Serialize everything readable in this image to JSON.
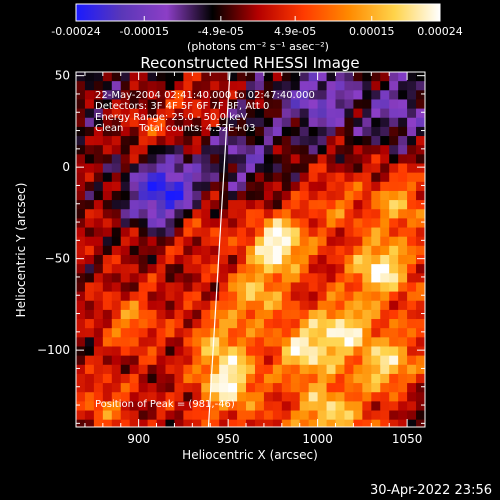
{
  "colorbar": {
    "tick_labels": [
      "-0.00024",
      "-0.00015",
      "-4.9e-05",
      "4.9e-05",
      "0.00015",
      "0.00024"
    ],
    "tick_values": [
      -0.00024,
      -0.00015,
      -4.9e-05,
      4.9e-05,
      0.00015,
      0.00024
    ],
    "range": [
      -0.00024,
      0.00024
    ],
    "units_label": "(photons cm⁻² s⁻¹ asec⁻²)",
    "colors": [
      "#1a1aff",
      "#5a37b8",
      "#8c3ec6",
      "#000000",
      "#b40000",
      "#ff3a00",
      "#ff8a00",
      "#ffd34a",
      "#ffffff"
    ]
  },
  "footer": {
    "timestamp": "30-Apr-2022 23:56"
  },
  "chart_data": {
    "type": "heatmap",
    "title": "Reconstructed RHESSI Image",
    "xlabel": "Heliocentric X (arcsec)",
    "ylabel": "Heliocentric Y (arcsec)",
    "xlim": [
      865,
      1060
    ],
    "ylim": [
      -142,
      52
    ],
    "x_ticks": [
      900,
      950,
      1000,
      1050
    ],
    "x_tick_labels": [
      "900",
      "950",
      "1000",
      "1050"
    ],
    "y_ticks": [
      50,
      0,
      -50,
      -100
    ],
    "y_tick_labels": [
      "50",
      "0",
      "−50",
      "−100"
    ],
    "info_lines": [
      "22-May-2004 02:41:40.000 to 02:47:40.000",
      "Detectors: 3F 4F 5F 6F 7F 8F, Att 0",
      "Energy Range: 25.0 - 50.0 keV",
      "Clean     Total counts: 4.52E+03"
    ],
    "peak_label": "Position of Peak = (981,-46)",
    "peak": {
      "x": 981,
      "y": -46
    },
    "grid": false,
    "hot_spots": [
      {
        "x": 978,
        "y": -42,
        "value": 0.00024
      },
      {
        "x": 1035,
        "y": -55,
        "value": 0.0002
      },
      {
        "x": 950,
        "y": -118,
        "value": 0.0002
      },
      {
        "x": 993,
        "y": -100,
        "value": 0.00017
      },
      {
        "x": 1015,
        "y": -88,
        "value": 0.00016
      },
      {
        "x": 965,
        "y": -70,
        "value": 0.00014
      },
      {
        "x": 1040,
        "y": -110,
        "value": 0.00016
      },
      {
        "x": 1005,
        "y": -135,
        "value": 0.00014
      },
      {
        "x": 945,
        "y": -95,
        "value": 0.00012
      },
      {
        "x": 1045,
        "y": -20,
        "value": 0.00013
      },
      {
        "x": 895,
        "y": -85,
        "value": 0.00011
      },
      {
        "x": 880,
        "y": -130,
        "value": 0.0001
      },
      {
        "x": 930,
        "y": -30,
        "value": 9e-05
      },
      {
        "x": 905,
        "y": 20,
        "value": 8e-05
      },
      {
        "x": 930,
        "y": 38,
        "value": 7e-05
      },
      {
        "x": 1010,
        "y": -20,
        "value": 8e-05
      }
    ],
    "cold_spots": [
      {
        "x": 915,
        "y": -15,
        "value": -0.00024
      },
      {
        "x": 1000,
        "y": 35,
        "value": -0.00012
      },
      {
        "x": 1045,
        "y": 30,
        "value": -0.0001
      },
      {
        "x": 960,
        "y": 5,
        "value": -9e-05
      },
      {
        "x": 1055,
        "y": -128,
        "value": -0.00011
      }
    ],
    "limb_line": {
      "points": [
        [
          951,
          52
        ],
        [
          939,
          -142
        ]
      ],
      "color": "#ffffff"
    }
  }
}
